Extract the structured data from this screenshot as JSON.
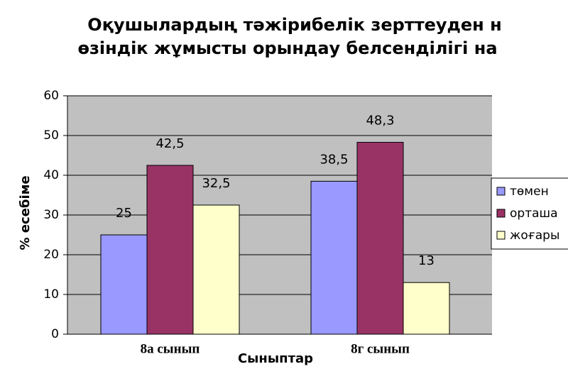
{
  "chart_data": {
    "type": "bar",
    "title": [
      "Оқушылардың тәжірибелік зерттеуден н",
      "өзіндік жұмысты орындау белсенділігі на"
    ],
    "categories": [
      "8а сынып",
      "8г сынып"
    ],
    "series": [
      {
        "name": "төмен",
        "color": "#9999ff",
        "values": [
          25,
          38.5
        ],
        "value_labels": [
          "25",
          "38,5"
        ]
      },
      {
        "name": "орташа",
        "color": "#993366",
        "values": [
          42.5,
          48.3
        ],
        "value_labels": [
          "42,5",
          "48,3"
        ]
      },
      {
        "name": "жоғары",
        "color": "#ffffcc",
        "values": [
          32.5,
          13
        ],
        "value_labels": [
          "32,5",
          "13"
        ]
      }
    ],
    "x_label": "Сыныптар",
    "y_label": "% есебіме",
    "ylim": [
      0,
      60
    ],
    "yticks": [
      0,
      10,
      20,
      30,
      40,
      50,
      60
    ],
    "grid": true,
    "legend": "right"
  }
}
